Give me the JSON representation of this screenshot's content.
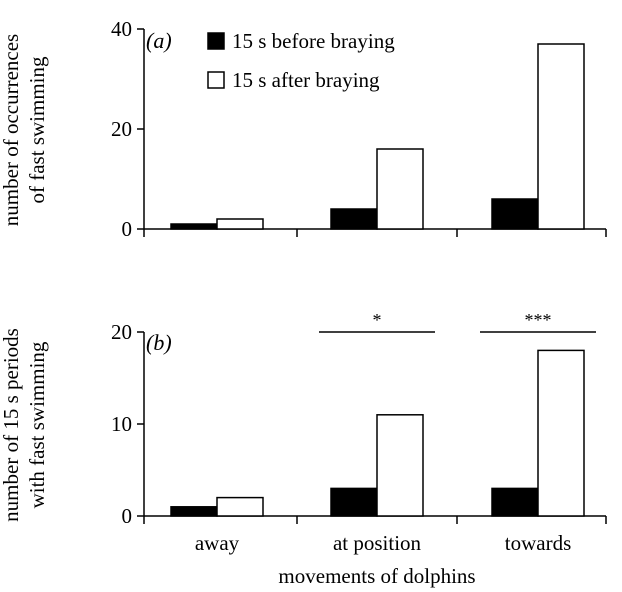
{
  "legend": {
    "before": "15 s before braying",
    "after": "15 s after braying"
  },
  "xlabel": "movements of dolphins",
  "chart_data": [
    {
      "type": "bar",
      "panel_label": "(a)",
      "ylabel_lines": [
        "number of occurrences",
        "of fast swimming"
      ],
      "ylim": [
        0,
        40
      ],
      "yticks": [
        0,
        20,
        40
      ],
      "categories": [
        "away",
        "at position",
        "towards"
      ],
      "series": [
        {
          "name": "15 s before braying",
          "color": "#000000",
          "values": [
            1,
            4,
            6
          ]
        },
        {
          "name": "15 s after braying",
          "color": "#ffffff",
          "values": [
            2,
            16,
            37
          ]
        }
      ],
      "significance": [
        "",
        "",
        ""
      ]
    },
    {
      "type": "bar",
      "panel_label": "(b)",
      "ylabel_lines": [
        "number of 15 s periods",
        "with fast swimming"
      ],
      "ylim": [
        0,
        20
      ],
      "yticks": [
        0,
        10,
        20
      ],
      "categories": [
        "away",
        "at position",
        "towards"
      ],
      "series": [
        {
          "name": "15 s before braying",
          "color": "#000000",
          "values": [
            1,
            3,
            3
          ]
        },
        {
          "name": "15 s after braying",
          "color": "#ffffff",
          "values": [
            2,
            11,
            18
          ]
        }
      ],
      "significance": [
        "",
        "*",
        "***"
      ]
    }
  ]
}
